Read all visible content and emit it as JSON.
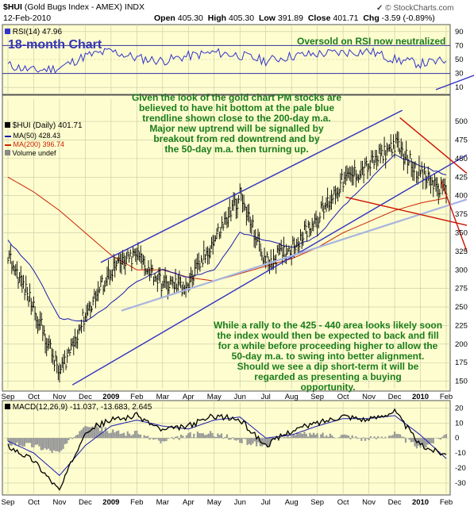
{
  "header": {
    "symbol": "$HUI",
    "name": "(Gold Bugs Index - AMEX)",
    "exchange": "INDX",
    "date": "12-Feb-2010",
    "open_label": "Open",
    "open": "405.30",
    "high_label": "High",
    "high": "405.30",
    "low_label": "Low",
    "low": "391.89",
    "close_label": "Close",
    "close": "401.71",
    "chg_label": "Chg",
    "chg": "-3.59 (-0.89%)",
    "brand": "© StockCharts.com",
    "brand_mark": "✓"
  },
  "colors": {
    "panel_bg": "#fdfdcf",
    "price": "#000000",
    "ma50": "#1a1ab0",
    "ma200": "#cc2200",
    "trend_blue": "#3030c0",
    "trend_red": "#cc1100",
    "trend_pale": "#a8b4e0",
    "rsi": "#3333cc",
    "macd_hist": "#999999",
    "annotation": "#1a7c1a"
  },
  "rsi": {
    "label": "RSI(14) 47.96",
    "title": "18-month Chart",
    "note": "Oversold on RSI now neutralized",
    "levels": [
      70,
      50,
      30
    ],
    "ticks": [
      "90",
      "70",
      "50",
      "30",
      "10"
    ]
  },
  "price_legend": {
    "main": "$HUI (Daily) 401.71",
    "ma50": "MA(50) 428.43",
    "ma200": "MA(200) 396.74",
    "volume": "Volume undef"
  },
  "annotations": {
    "top": [
      "Given the look of the gold chart PM stocks are",
      "believed to have hit bottom at the pale blue",
      "trendline shown close to the 200-day m.a.",
      "Major new uptrend will be signalled by",
      "breakout from red downtrend and by",
      "the 50-day m.a. then turning up."
    ],
    "bottom": [
      "While a rally to the 425 - 440 area looks likely soon",
      "the index would then be expected to back and fill",
      "for a while before proceeding higher to allow the",
      "50-day m.a. to swing into better alignment.",
      "Should we see a dip short-term it will be",
      "regarded as presenting a buying",
      "opportunity."
    ]
  },
  "macd": {
    "label": "MACD(12,26,9) -11.037, -13.683, 2.645",
    "ticks": [
      "20",
      "10",
      "0",
      "-10",
      "-20",
      "-30"
    ]
  },
  "x_axis": [
    "Sep",
    "Oct",
    "Nov",
    "Dec",
    "2009",
    "Feb",
    "Mar",
    "Apr",
    "May",
    "Jun",
    "Jul",
    "Aug",
    "Sep",
    "Oct",
    "Nov",
    "Dec",
    "2010",
    "Feb"
  ],
  "chart_data": [
    {
      "type": "line",
      "title": "18-month Chart",
      "series_label": "RSI(14)",
      "ylim": [
        0,
        100
      ],
      "y_ticks": [
        10,
        30,
        50,
        70,
        90
      ],
      "x": [
        "Sep",
        "Oct",
        "Nov",
        "Dec",
        "2009",
        "Feb",
        "Mar",
        "Apr",
        "May",
        "Jun",
        "Jul",
        "Aug",
        "Sep",
        "Oct",
        "Nov",
        "Dec",
        "2010",
        "Feb"
      ],
      "values": [
        42,
        34,
        38,
        55,
        62,
        52,
        48,
        55,
        60,
        56,
        48,
        55,
        58,
        60,
        62,
        50,
        44,
        48
      ],
      "last": 47.96
    },
    {
      "type": "line",
      "series_label": "$HUI (Daily)",
      "ylim": [
        140,
        530
      ],
      "y_ticks": [
        150,
        175,
        200,
        225,
        250,
        275,
        300,
        325,
        350,
        375,
        400,
        425,
        450,
        475,
        500
      ],
      "x": [
        "Sep",
        "Oct",
        "Nov",
        "Dec",
        "2009",
        "Feb",
        "Mar",
        "Apr",
        "May",
        "Jun",
        "Jul",
        "Aug",
        "Sep",
        "Oct",
        "Nov",
        "Dec",
        "2010",
        "Feb"
      ],
      "series": [
        {
          "name": "$HUI (Daily)",
          "values": [
            320,
            250,
            160,
            240,
            300,
            320,
            280,
            280,
            340,
            400,
            310,
            330,
            370,
            420,
            440,
            470,
            430,
            402
          ]
        },
        {
          "name": "MA(50)",
          "values": [
            340,
            300,
            235,
            230,
            255,
            285,
            300,
            290,
            300,
            350,
            340,
            330,
            345,
            385,
            420,
            455,
            440,
            428
          ]
        },
        {
          "name": "MA(200)",
          "values": [
            425,
            405,
            380,
            350,
            320,
            300,
            300,
            290,
            285,
            295,
            305,
            315,
            330,
            350,
            365,
            380,
            390,
            397
          ]
        }
      ],
      "last": 401.71
    },
    {
      "type": "line",
      "series_label": "MACD(12,26,9)",
      "ylim": [
        -38,
        25
      ],
      "y_ticks": [
        -30,
        -20,
        -10,
        0,
        10,
        20
      ],
      "x": [
        "Sep",
        "Oct",
        "Nov",
        "Dec",
        "2009",
        "Feb",
        "Mar",
        "Apr",
        "May",
        "Jun",
        "Jul",
        "Aug",
        "Sep",
        "Oct",
        "Nov",
        "Dec",
        "2010",
        "Feb"
      ],
      "series": [
        {
          "name": "MACD",
          "values": [
            -5,
            -15,
            -35,
            5,
            12,
            15,
            5,
            8,
            15,
            12,
            -5,
            5,
            10,
            15,
            12,
            18,
            -5,
            -11.037
          ]
        },
        {
          "name": "Signal",
          "values": [
            -2,
            -10,
            -25,
            -5,
            8,
            12,
            8,
            6,
            12,
            14,
            0,
            2,
            8,
            13,
            13,
            15,
            2,
            -13.683
          ]
        }
      ],
      "histogram_last": 2.645
    }
  ]
}
